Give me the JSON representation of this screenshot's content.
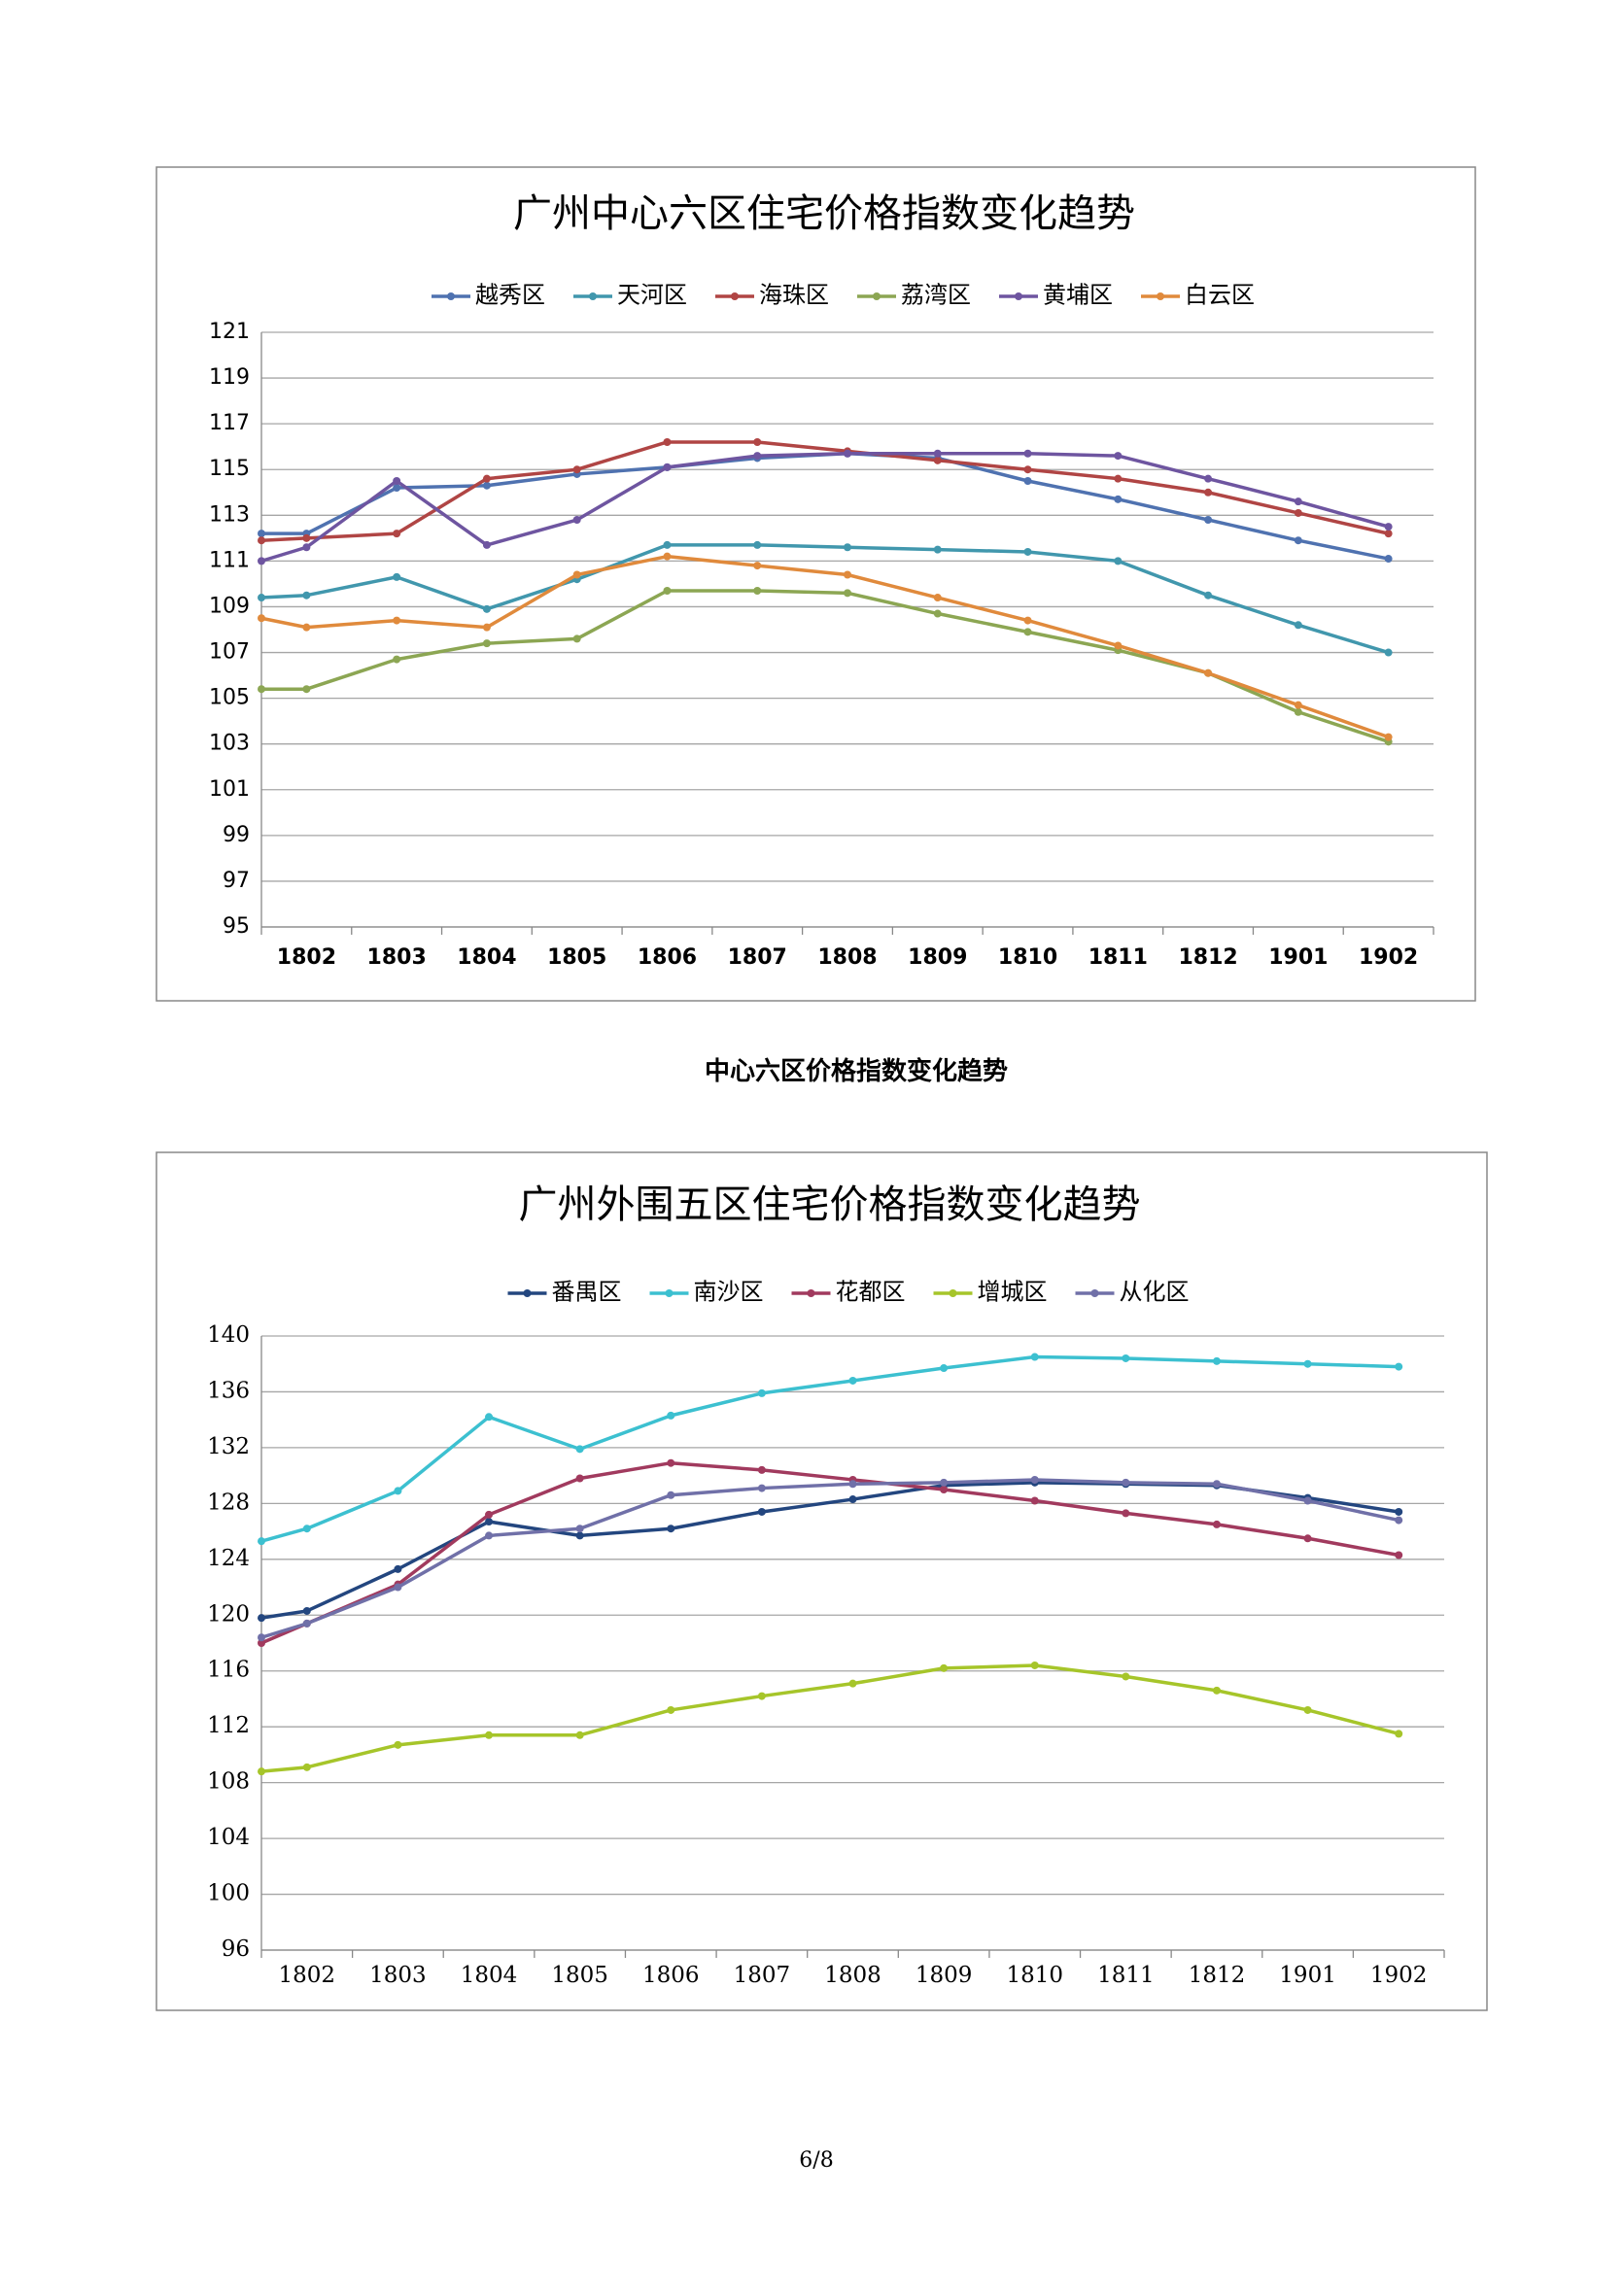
{
  "chart_data": [
    {
      "type": "line",
      "title": "广州中心六区住宅价格指数变化趋势",
      "categories": [
        null,
        "1802",
        "1803",
        "1804",
        "1805",
        "1806",
        "1807",
        "1808",
        "1809",
        "1810",
        "1811",
        "1812",
        "1901",
        "1902"
      ],
      "ylim": [
        95,
        121
      ],
      "yticks": [
        95,
        97,
        99,
        101,
        103,
        105,
        107,
        109,
        111,
        113,
        115,
        117,
        119,
        121
      ],
      "grid": true,
      "legend": "top",
      "series": [
        {
          "name": "越秀区",
          "color": "#4f72b0",
          "values": [
            112.2,
            112.2,
            114.2,
            114.3,
            114.8,
            115.1,
            115.5,
            115.7,
            115.5,
            114.5,
            113.7,
            112.8,
            111.9,
            111.1
          ]
        },
        {
          "name": "天河区",
          "color": "#4197ad",
          "values": [
            109.4,
            109.5,
            110.3,
            108.9,
            110.2,
            111.7,
            111.7,
            111.6,
            111.5,
            111.4,
            111.0,
            109.5,
            108.2,
            107.0
          ]
        },
        {
          "name": "海珠区",
          "color": "#b04544",
          "values": [
            111.9,
            112.0,
            112.2,
            114.6,
            115.0,
            116.2,
            116.2,
            115.8,
            115.4,
            115.0,
            114.6,
            114.0,
            113.1,
            112.2
          ]
        },
        {
          "name": "荔湾区",
          "color": "#8ca653",
          "values": [
            105.4,
            105.4,
            106.7,
            107.4,
            107.6,
            109.7,
            109.7,
            109.6,
            108.7,
            107.9,
            107.1,
            106.1,
            104.4,
            103.1
          ]
        },
        {
          "name": "黄埔区",
          "color": "#6e55a0",
          "values": [
            111.0,
            111.6,
            114.5,
            111.7,
            112.8,
            115.1,
            115.6,
            115.7,
            115.7,
            115.7,
            115.6,
            114.6,
            113.6,
            112.5
          ]
        },
        {
          "name": "白云区",
          "color": "#e08a3c",
          "values": [
            108.5,
            108.1,
            108.4,
            108.1,
            110.4,
            111.2,
            110.8,
            110.4,
            109.4,
            108.4,
            107.3,
            106.1,
            104.7,
            103.3
          ]
        }
      ]
    },
    {
      "type": "line",
      "title": "广州外围五区住宅价格指数变化趋势",
      "categories": [
        null,
        "1802",
        "1803",
        "1804",
        "1805",
        "1806",
        "1807",
        "1808",
        "1809",
        "1810",
        "1811",
        "1812",
        "1901",
        "1902"
      ],
      "ylim": [
        96,
        140
      ],
      "yticks": [
        96,
        100,
        104,
        108,
        112,
        116,
        120,
        124,
        128,
        132,
        136,
        140
      ],
      "grid": true,
      "legend": "top",
      "series": [
        {
          "name": "番禺区",
          "color": "#23467f",
          "values": [
            119.8,
            120.3,
            123.3,
            126.7,
            125.7,
            126.2,
            127.4,
            128.3,
            129.3,
            129.5,
            129.4,
            129.3,
            128.4,
            127.4
          ]
        },
        {
          "name": "南沙区",
          "color": "#3cc0d0",
          "values": [
            125.3,
            126.2,
            128.9,
            134.2,
            131.9,
            134.3,
            135.9,
            136.8,
            137.7,
            138.5,
            138.4,
            138.2,
            138.0,
            137.8
          ]
        },
        {
          "name": "花都区",
          "color": "#a13a5e",
          "values": [
            118.0,
            119.4,
            122.2,
            127.2,
            129.8,
            130.9,
            130.4,
            129.7,
            129.0,
            128.2,
            127.3,
            126.5,
            125.5,
            124.3
          ]
        },
        {
          "name": "增城区",
          "color": "#a6c52a",
          "values": [
            108.8,
            109.1,
            110.7,
            111.4,
            111.4,
            113.2,
            114.2,
            115.1,
            116.2,
            116.4,
            115.6,
            114.6,
            113.2,
            111.5
          ]
        },
        {
          "name": "从化区",
          "color": "#7070a8",
          "values": [
            118.4,
            119.4,
            122.0,
            125.7,
            126.2,
            128.6,
            129.1,
            129.4,
            129.5,
            129.7,
            129.5,
            129.4,
            128.2,
            126.8
          ]
        }
      ]
    }
  ],
  "caption": "中心六区价格指数变化趋势",
  "page_number": "6/8"
}
